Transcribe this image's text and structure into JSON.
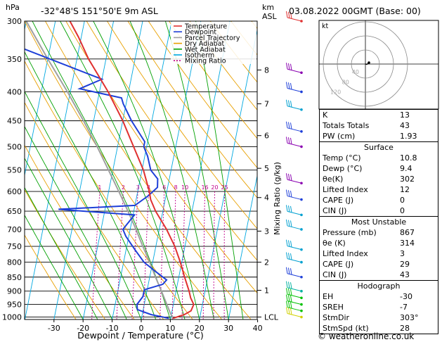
{
  "header": {
    "hpa_label": "hPa",
    "location": "-32°48'S 151°50'E 9m ASL",
    "km_label": "km",
    "asl_label": "ASL",
    "datetime": "03.08.2022 00GMT (Base: 00)"
  },
  "legend": [
    {
      "label": "Temperature",
      "color": "#e03030",
      "dash": ""
    },
    {
      "label": "Dewpoint",
      "color": "#1e3fd8",
      "dash": ""
    },
    {
      "label": "Parcel Trajectory",
      "color": "#a0a0a0",
      "dash": ""
    },
    {
      "label": "Dry Adiabat",
      "color": "#e8a000",
      "dash": ""
    },
    {
      "label": "Wet Adiabat",
      "color": "#00a000",
      "dash": ""
    },
    {
      "label": "Isotherm",
      "color": "#00a8e0",
      "dash": ""
    },
    {
      "label": "Mixing Ratio",
      "color": "#c0008a",
      "dash": "2,2"
    }
  ],
  "chart_data": {
    "type": "skew-t",
    "xlabel": "Dewpoint / Temperature (°C)",
    "ylabel_right": "Mixing Ratio (g/kg)",
    "x_ticks": [
      -30,
      -20,
      -10,
      0,
      10,
      20,
      30,
      40
    ],
    "pressure_ticks": [
      300,
      350,
      400,
      450,
      500,
      550,
      600,
      650,
      700,
      750,
      800,
      850,
      900,
      950,
      1000
    ],
    "xlim": [
      -40,
      40
    ],
    "plim": [
      300,
      1010
    ],
    "km_ticks": [
      {
        "label": "8",
        "p": 366
      },
      {
        "label": "7",
        "p": 420
      },
      {
        "label": "6",
        "p": 478
      },
      {
        "label": "5",
        "p": 546
      },
      {
        "label": "4",
        "p": 615
      },
      {
        "label": "3",
        "p": 705
      },
      {
        "label": "2",
        "p": 800
      },
      {
        "label": "1",
        "p": 897
      },
      {
        "label": "LCL",
        "p": 1000
      }
    ],
    "mixing_ratio_labels": [
      "1",
      "2",
      "3",
      "4",
      "6",
      "8",
      "10",
      "16",
      "20",
      "25"
    ],
    "mixing_ratio_values": [
      1,
      2,
      3,
      4,
      6,
      8,
      10,
      16,
      20,
      25
    ],
    "temperature_profile": [
      {
        "p": 1005,
        "t": 10.8
      },
      {
        "p": 990,
        "t": 14.5
      },
      {
        "p": 975,
        "t": 16.5
      },
      {
        "p": 950,
        "t": 17.0
      },
      {
        "p": 925,
        "t": 15.5
      },
      {
        "p": 900,
        "t": 14.5
      },
      {
        "p": 850,
        "t": 12.0
      },
      {
        "p": 800,
        "t": 9.5
      },
      {
        "p": 750,
        "t": 6.5
      },
      {
        "p": 700,
        "t": 2.5
      },
      {
        "p": 650,
        "t": -2.5
      },
      {
        "p": 620,
        "t": -5.0
      },
      {
        "p": 600,
        "t": -6.0
      },
      {
        "p": 550,
        "t": -9.5
      },
      {
        "p": 500,
        "t": -14.5
      },
      {
        "p": 450,
        "t": -20.0
      },
      {
        "p": 400,
        "t": -27.0
      },
      {
        "p": 350,
        "t": -36.0
      },
      {
        "p": 320,
        "t": -41.0
      },
      {
        "p": 300,
        "t": -45.0
      }
    ],
    "dewpoint_profile": [
      {
        "p": 1005,
        "t": 9.4
      },
      {
        "p": 990,
        "t": 3.0
      },
      {
        "p": 970,
        "t": -2.0
      },
      {
        "p": 950,
        "t": -2.5
      },
      {
        "p": 920,
        "t": -1.0
      },
      {
        "p": 895,
        "t": -1.0
      },
      {
        "p": 875,
        "t": 5.0
      },
      {
        "p": 860,
        "t": 6.0
      },
      {
        "p": 830,
        "t": 1.5
      },
      {
        "p": 800,
        "t": -3.0
      },
      {
        "p": 760,
        "t": -7.0
      },
      {
        "p": 720,
        "t": -11.0
      },
      {
        "p": 700,
        "t": -12.5
      },
      {
        "p": 660,
        "t": -9.5
      },
      {
        "p": 645,
        "t": -36.0
      },
      {
        "p": 635,
        "t": -10.0
      },
      {
        "p": 610,
        "t": -6.0
      },
      {
        "p": 590,
        "t": -3.5
      },
      {
        "p": 570,
        "t": -4.0
      },
      {
        "p": 550,
        "t": -7.0
      },
      {
        "p": 520,
        "t": -9.0
      },
      {
        "p": 500,
        "t": -11.0
      },
      {
        "p": 490,
        "t": -11.0
      },
      {
        "p": 450,
        "t": -17.0
      },
      {
        "p": 420,
        "t": -21.0
      },
      {
        "p": 410,
        "t": -22.0
      },
      {
        "p": 395,
        "t": -37.0
      },
      {
        "p": 380,
        "t": -30.0
      },
      {
        "p": 330,
        "t": -63.0
      },
      {
        "p": 300,
        "t": -65.0
      }
    ],
    "parcel_profile": [
      {
        "p": 1005,
        "t": 10.8
      },
      {
        "p": 985,
        "t": 9.6
      },
      {
        "p": 900,
        "t": 5.0
      },
      {
        "p": 850,
        "t": 2.0
      },
      {
        "p": 800,
        "t": -1.0
      },
      {
        "p": 750,
        "t": -4.5
      },
      {
        "p": 700,
        "t": -8.0
      },
      {
        "p": 650,
        "t": -12.0
      },
      {
        "p": 600,
        "t": -16.5
      },
      {
        "p": 550,
        "t": -21.5
      },
      {
        "p": 500,
        "t": -27.0
      },
      {
        "p": 450,
        "t": -33.5
      },
      {
        "p": 400,
        "t": -41.0
      },
      {
        "p": 350,
        "t": -50.0
      },
      {
        "p": 300,
        "t": -60.0
      }
    ],
    "wind_barbs": [
      {
        "p": 300,
        "color": "#e03030"
      },
      {
        "p": 370,
        "color": "#8a00b0"
      },
      {
        "p": 400,
        "color": "#1e3fd8"
      },
      {
        "p": 430,
        "color": "#00a0d0"
      },
      {
        "p": 470,
        "color": "#1e3fd8"
      },
      {
        "p": 500,
        "color": "#8a00b0"
      },
      {
        "p": 580,
        "color": "#8a00b0"
      },
      {
        "p": 620,
        "color": "#1e3fd8"
      },
      {
        "p": 660,
        "color": "#00a0d0"
      },
      {
        "p": 700,
        "color": "#00a0d0"
      },
      {
        "p": 760,
        "color": "#00a0d0"
      },
      {
        "p": 800,
        "color": "#00a0d0"
      },
      {
        "p": 850,
        "color": "#1e3fd8"
      },
      {
        "p": 900,
        "color": "#00b0a0"
      },
      {
        "p": 925,
        "color": "#00c000"
      },
      {
        "p": 950,
        "color": "#00c000"
      },
      {
        "p": 975,
        "color": "#00c000"
      },
      {
        "p": 1000,
        "color": "#d0d000"
      }
    ],
    "hodograph": {
      "label": "kt",
      "ring_labels": [
        "40",
        "80",
        "120"
      ],
      "points": [
        {
          "u": 0,
          "v": 0
        },
        {
          "u": 4,
          "v": 1
        },
        {
          "u": 8,
          "v": -2
        },
        {
          "u": 10,
          "v": -4
        }
      ]
    }
  },
  "indices": {
    "basic": [
      {
        "label": "K",
        "value": "13"
      },
      {
        "label": "Totals Totals",
        "value": "43"
      },
      {
        "label": "PW (cm)",
        "value": "1.93"
      }
    ],
    "surface_title": "Surface",
    "surface": [
      {
        "label": "Temp (°C)",
        "value": "10.8"
      },
      {
        "label": "Dewp (°C)",
        "value": "9.4"
      },
      {
        "label": "θe(K)",
        "value": "302"
      },
      {
        "label": "Lifted Index",
        "value": "12"
      },
      {
        "label": "CAPE (J)",
        "value": "0"
      },
      {
        "label": "CIN (J)",
        "value": "0"
      }
    ],
    "unstable_title": "Most Unstable",
    "unstable": [
      {
        "label": "Pressure (mb)",
        "value": "867"
      },
      {
        "label": "θe (K)",
        "value": "314"
      },
      {
        "label": "Lifted Index",
        "value": "3"
      },
      {
        "label": "CAPE (J)",
        "value": "29"
      },
      {
        "label": "CIN (J)",
        "value": "43"
      }
    ],
    "hodograph_title": "Hodograph",
    "hodograph": [
      {
        "label": "EH",
        "value": "-30"
      },
      {
        "label": "SREH",
        "value": "-7"
      },
      {
        "label": "StmDir",
        "value": "303°"
      },
      {
        "label": "StmSpd (kt)",
        "value": "28"
      }
    ]
  },
  "footer": "© weatheronline.co.uk"
}
